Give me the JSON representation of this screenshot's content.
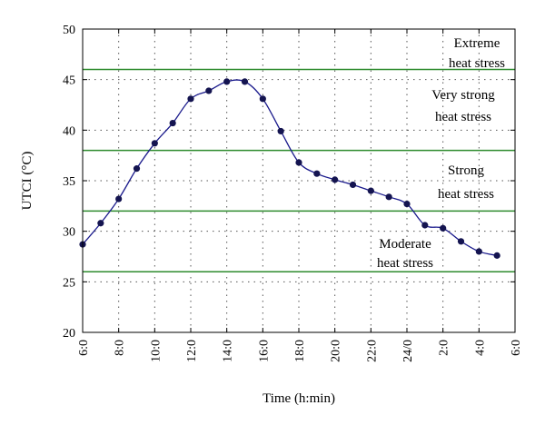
{
  "chart_data": {
    "type": "line",
    "title": "",
    "xlabel": "Time (h:min)",
    "ylabel": "UTCI (°C)",
    "ylim": [
      20,
      50
    ],
    "xlim": [
      0,
      24
    ],
    "y_ticks": [
      20,
      25,
      30,
      35,
      40,
      45,
      50
    ],
    "x_tick_labels": [
      "6:0",
      "8:0",
      "10:0",
      "12:0",
      "14:0",
      "16:0",
      "18:0",
      "20:0",
      "22:0",
      "24/0",
      "2:0",
      "4:0",
      "6:0"
    ],
    "grid": "dotted",
    "colors": {
      "series": "#1a1a8c",
      "marker": "#141450",
      "threshold": "#2e8b2e"
    },
    "series": [
      {
        "x": [
          "6:0",
          "7:0",
          "8:0",
          "9:0",
          "10:0",
          "11:0",
          "12:0",
          "13:0",
          "14:0",
          "15:0",
          "16:0",
          "17:0",
          "18:0",
          "19:0",
          "20:0",
          "21:0",
          "22:0",
          "23:0",
          "24/0",
          "1:0",
          "2:0",
          "3:0",
          "4:0",
          "5:0"
        ],
        "values": [
          28.7,
          30.8,
          33.2,
          36.2,
          38.7,
          40.7,
          43.1,
          43.9,
          44.8,
          44.8,
          43.1,
          39.9,
          36.8,
          35.7,
          35.1,
          34.6,
          34.0,
          33.4,
          32.7,
          30.6,
          30.3,
          29.0,
          28.0,
          27.6
        ]
      }
    ],
    "thresholds": [
      26,
      32,
      38,
      46
    ],
    "zone_labels": [
      {
        "lines": [
          "Extreme",
          "heat stress"
        ]
      },
      {
        "lines": [
          "Very strong",
          "heat stress"
        ]
      },
      {
        "lines": [
          "Strong",
          "heat stress"
        ]
      },
      {
        "lines": [
          "Moderate",
          "heat stress"
        ]
      }
    ]
  }
}
